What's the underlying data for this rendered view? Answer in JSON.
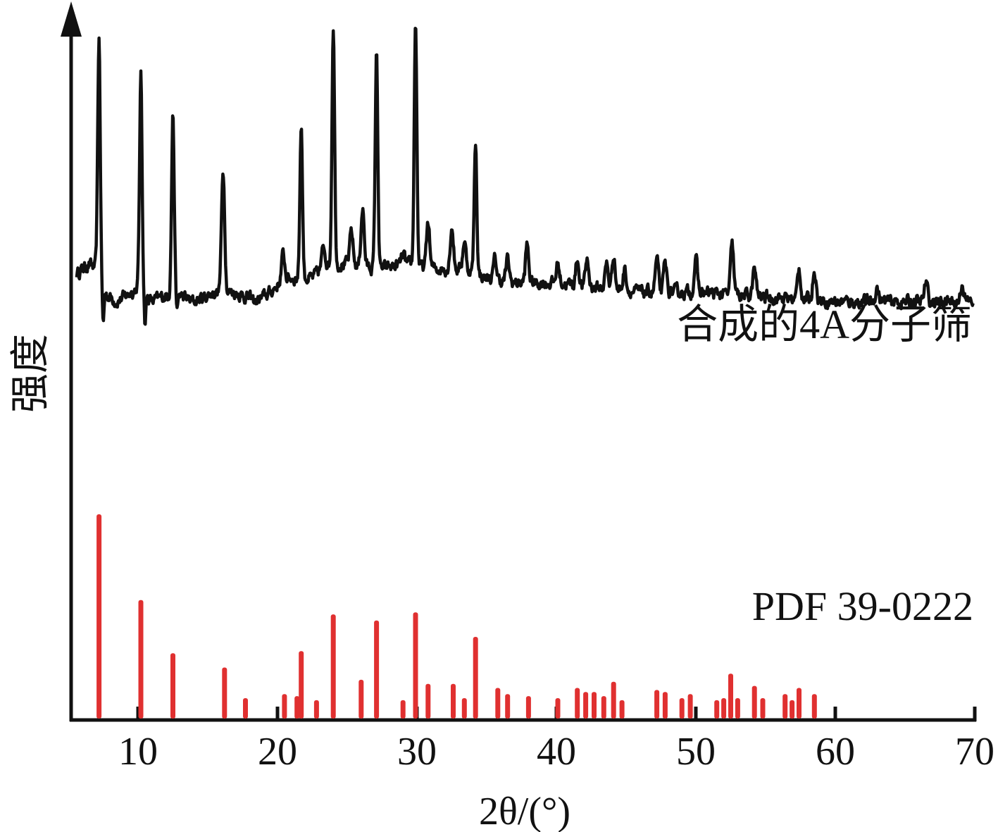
{
  "chart_data": {
    "type": "line",
    "title": "",
    "xlabel": "2θ/(°)",
    "ylabel": "强度",
    "xlim": [
      5.5,
      70
    ],
    "ylim": [
      0,
      1
    ],
    "xticks": [
      "10",
      "20",
      "30",
      "40",
      "50",
      "60",
      "70"
    ],
    "grid": false,
    "legend": "none",
    "colors": {
      "axis": "#111111",
      "pattern": "#111111",
      "reference": "#e03030"
    },
    "series": [
      {
        "name": "合成的4A分子筛",
        "kind": "line",
        "baseline": [
          [
            5.6,
            0.46
          ],
          [
            6.5,
            0.48
          ],
          [
            7.0,
            0.47
          ],
          [
            7.5,
            0.42
          ],
          [
            8.5,
            0.4
          ],
          [
            10.0,
            0.43
          ],
          [
            11.0,
            0.4
          ],
          [
            12.5,
            0.42
          ],
          [
            14.0,
            0.4
          ],
          [
            15.5,
            0.42
          ],
          [
            17.0,
            0.42
          ],
          [
            18.5,
            0.4
          ],
          [
            19.5,
            0.42
          ],
          [
            20.5,
            0.45
          ],
          [
            22.5,
            0.45
          ],
          [
            23.5,
            0.48
          ],
          [
            25.0,
            0.48
          ],
          [
            27.5,
            0.47
          ],
          [
            29.0,
            0.48
          ],
          [
            31.0,
            0.47
          ],
          [
            33.5,
            0.47
          ],
          [
            35.0,
            0.45
          ],
          [
            37.0,
            0.44
          ],
          [
            40.0,
            0.44
          ],
          [
            43.0,
            0.43
          ],
          [
            46.0,
            0.42
          ],
          [
            50.0,
            0.42
          ],
          [
            55.0,
            0.41
          ],
          [
            60.0,
            0.4
          ],
          [
            65.0,
            0.4
          ],
          [
            70.0,
            0.4
          ]
        ],
        "peaks": [
          [
            6.6,
            0.04
          ],
          [
            7.2,
            0.96
          ],
          [
            10.2,
            0.88
          ],
          [
            12.5,
            0.8
          ],
          [
            16.1,
            0.68
          ],
          [
            20.4,
            0.5
          ],
          [
            21.7,
            0.78
          ],
          [
            23.3,
            0.52
          ],
          [
            24.0,
            0.99
          ],
          [
            25.3,
            0.55
          ],
          [
            26.1,
            0.6
          ],
          [
            27.1,
            0.93
          ],
          [
            29.0,
            0.5
          ],
          [
            29.9,
            1.0
          ],
          [
            30.8,
            0.57
          ],
          [
            32.5,
            0.56
          ],
          [
            33.4,
            0.53
          ],
          [
            34.2,
            0.74
          ],
          [
            35.6,
            0.49
          ],
          [
            36.5,
            0.49
          ],
          [
            37.9,
            0.52
          ],
          [
            40.1,
            0.48
          ],
          [
            41.5,
            0.49
          ],
          [
            42.2,
            0.49
          ],
          [
            43.6,
            0.48
          ],
          [
            44.1,
            0.5
          ],
          [
            44.9,
            0.47
          ],
          [
            47.2,
            0.49
          ],
          [
            47.8,
            0.48
          ],
          [
            50.0,
            0.49
          ],
          [
            52.6,
            0.52
          ],
          [
            54.2,
            0.47
          ],
          [
            57.4,
            0.47
          ],
          [
            58.5,
            0.47
          ],
          [
            63.0,
            0.43
          ],
          [
            66.5,
            0.44
          ],
          [
            69.1,
            0.44
          ]
        ]
      },
      {
        "name": "PDF 39-0222",
        "kind": "stick",
        "x": [
          7.2,
          10.2,
          12.5,
          16.2,
          17.7,
          20.5,
          21.4,
          21.7,
          22.8,
          24.0,
          26.0,
          27.1,
          29.0,
          29.9,
          30.8,
          32.6,
          33.4,
          34.2,
          35.8,
          36.5,
          38.0,
          40.1,
          41.5,
          42.1,
          42.7,
          43.4,
          44.1,
          44.7,
          47.2,
          47.8,
          49.0,
          49.6,
          51.5,
          52.0,
          52.5,
          53.0,
          54.2,
          54.8,
          56.4,
          56.9,
          57.4,
          58.5
        ],
        "y": [
          1.0,
          0.58,
          0.32,
          0.25,
          0.1,
          0.12,
          0.11,
          0.33,
          0.09,
          0.51,
          0.19,
          0.48,
          0.09,
          0.52,
          0.17,
          0.17,
          0.1,
          0.4,
          0.15,
          0.12,
          0.11,
          0.1,
          0.15,
          0.13,
          0.13,
          0.11,
          0.18,
          0.09,
          0.14,
          0.13,
          0.1,
          0.12,
          0.09,
          0.1,
          0.22,
          0.1,
          0.16,
          0.1,
          0.12,
          0.09,
          0.15,
          0.12
        ]
      }
    ]
  }
}
